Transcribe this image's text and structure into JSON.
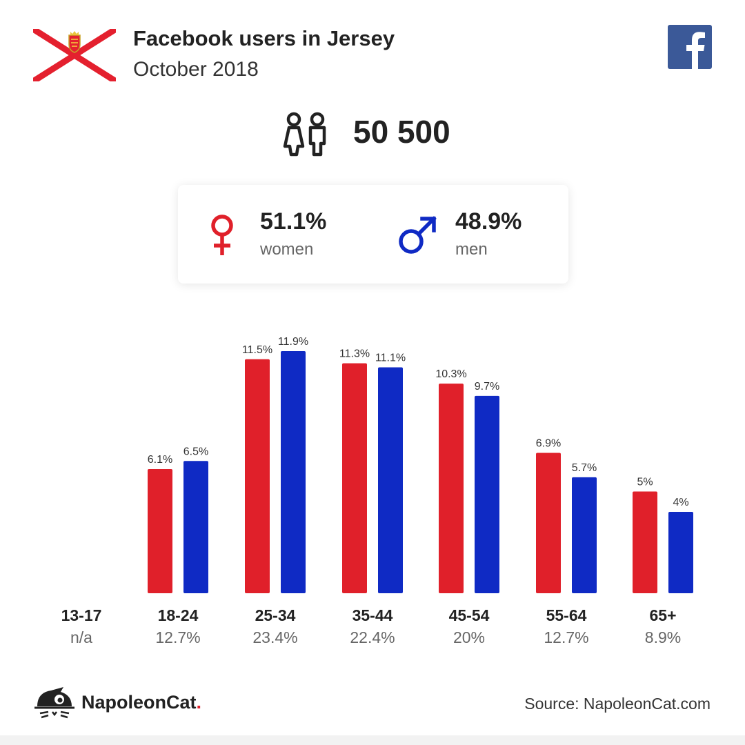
{
  "header": {
    "title": "Facebook users in Jersey",
    "subtitle": "October 2018"
  },
  "summary": {
    "total_users": "50 500",
    "women_pct": "51.1%",
    "women_label": "women",
    "men_pct": "48.9%",
    "men_label": "men"
  },
  "colors": {
    "women": "#e0202a",
    "men": "#0f2ac4",
    "facebook": "#3b5998",
    "flag_red": "#e4202e"
  },
  "icons": {
    "flag": "jersey-flag-icon",
    "facebook": "facebook-logo-icon",
    "users": "users-icon",
    "female": "female-symbol-icon",
    "male": "male-symbol-icon",
    "brand": "napoleoncat-logo-icon"
  },
  "chart_data": {
    "type": "bar",
    "categories": [
      "13-17",
      "18-24",
      "25-34",
      "35-44",
      "45-54",
      "55-64",
      "65+"
    ],
    "category_totals": [
      "n/a",
      "12.7%",
      "23.4%",
      "22.4%",
      "20%",
      "12.7%",
      "8.9%"
    ],
    "series": [
      {
        "values": [
          null,
          6.1,
          11.5,
          11.3,
          10.3,
          6.9,
          5
        ],
        "labels": [
          "",
          "6.1%",
          "11.5%",
          "11.3%",
          "10.3%",
          "6.9%",
          "5%"
        ],
        "color": "#e0202a"
      },
      {
        "values": [
          null,
          6.5,
          11.9,
          11.1,
          9.7,
          5.7,
          4
        ],
        "labels": [
          "",
          "6.5%",
          "11.9%",
          "11.1%",
          "9.7%",
          "5.7%",
          "4%"
        ],
        "color": "#0f2ac4"
      }
    ],
    "ylim": [
      0,
      12
    ],
    "grid": false
  },
  "footer": {
    "brand": "NapoleonCat",
    "brand_dot": ".",
    "source": "Source: NapoleonCat.com"
  }
}
